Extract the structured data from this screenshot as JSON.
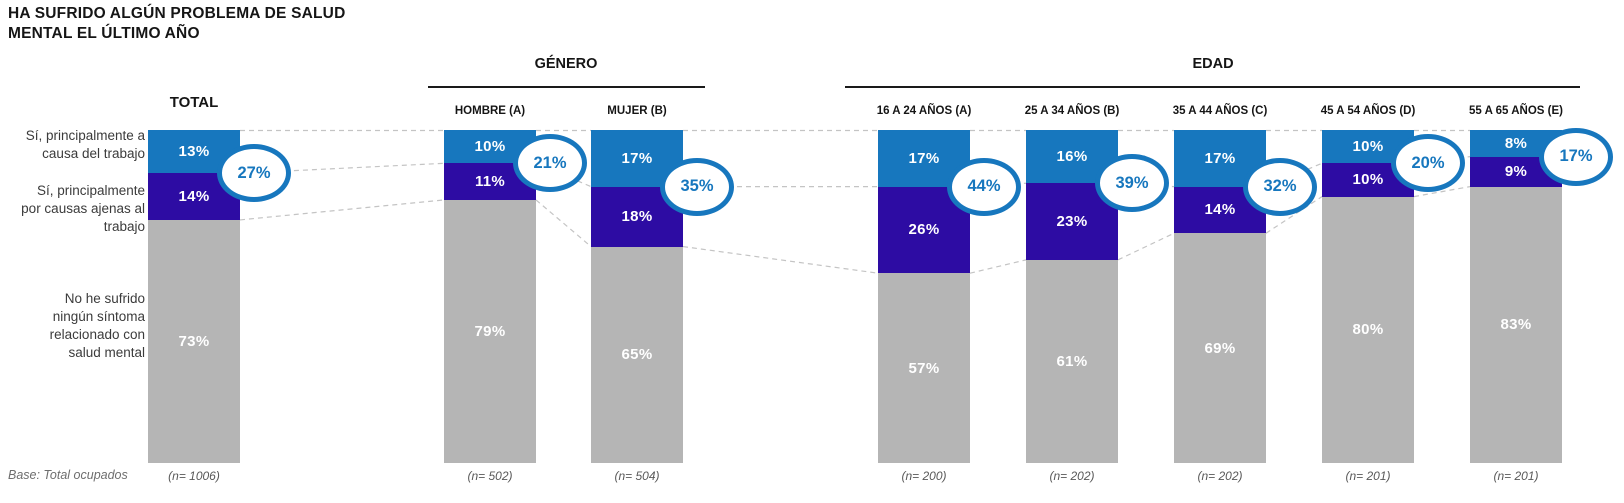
{
  "title": "HA SUFRIDO ALGÚN PROBLEMA DE SALUD\nMENTAL EL ÚLTIMO AÑO",
  "base_note": "Base: Total ocupados",
  "groups": [
    {
      "label": "GÉNERO"
    },
    {
      "label": "EDAD"
    }
  ],
  "row_labels": [
    "Sí, principalmente a\ncausa del trabajo",
    "Sí, principalmente\npor causas ajenas al\ntrabajo",
    "No he sufrido\nningún síntoma\nrelacionado con\nsalud mental"
  ],
  "colors": {
    "bar_primary_blue": "#1777BE",
    "bar_dark_indigo": "#2D0CA3",
    "bar_gray": "#B5B5B5",
    "badge_border_blue": "#1777BE",
    "badge_text_blue": "#1777BE",
    "connector_gray": "#C4C4C4",
    "header_text": "#151515",
    "note_gray": "#6E6E6E"
  },
  "chart_data": {
    "type": "bar",
    "stacked": true,
    "unit": "%",
    "ylim": [
      0,
      100
    ],
    "title": "HA SUFRIDO ALGÚN PROBLEMA DE SALUD MENTAL EL ÚLTIMO AÑO",
    "legend_position": "left-row-labels",
    "series_labels": [
      "Sí, principalmente a causa del trabajo",
      "Sí, principalmente por causas ajenas al trabajo",
      "No he sufrido ningún síntoma relacionado con salud mental"
    ],
    "columns": [
      {
        "header": "TOTAL",
        "group": null,
        "values": [
          13,
          14,
          73
        ],
        "total_si": 27,
        "n": "(n= 1006)"
      },
      {
        "header": "HOMBRE (A)",
        "group": "GÉNERO",
        "values": [
          10,
          11,
          79
        ],
        "total_si": 21,
        "n": "(n= 502)"
      },
      {
        "header": "MUJER (B)",
        "group": "GÉNERO",
        "values": [
          17,
          18,
          65
        ],
        "total_si": 35,
        "n": "(n= 504)"
      },
      {
        "header": "16 A 24 AÑOS (A)",
        "group": "EDAD",
        "values": [
          17,
          26,
          57
        ],
        "total_si": 44,
        "n": "(n= 200)"
      },
      {
        "header": "25 A 34 AÑOS (B)",
        "group": "EDAD",
        "values": [
          16,
          23,
          61
        ],
        "total_si": 39,
        "n": "(n= 202)"
      },
      {
        "header": "35 A 44 AÑOS (C)",
        "group": "EDAD",
        "values": [
          17,
          14,
          69
        ],
        "total_si": 32,
        "n": "(n= 202)"
      },
      {
        "header": "45 A 54 AÑOS (D)",
        "group": "EDAD",
        "values": [
          10,
          10,
          80
        ],
        "total_si": 20,
        "n": "(n= 201)"
      },
      {
        "header": "55 A 65 AÑOS (E)",
        "group": "EDAD",
        "values": [
          8,
          9,
          83
        ],
        "total_si": 17,
        "n": "(n= 201)"
      }
    ]
  }
}
